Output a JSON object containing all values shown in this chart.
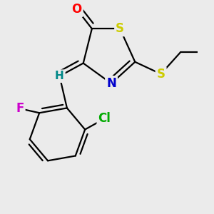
{
  "bg_color": "#ebebeb",
  "bond_color": "#000000",
  "atom_colors": {
    "O": "#ff0000",
    "S": "#cccc00",
    "N": "#0000cc",
    "Cl": "#00aa00",
    "F": "#cc00cc",
    "H": "#008888",
    "C": "#000000"
  },
  "bond_width": 1.6,
  "font_size": 10.5,
  "xlim": [
    -1.8,
    2.4
  ],
  "ylim": [
    -2.8,
    2.0
  ]
}
